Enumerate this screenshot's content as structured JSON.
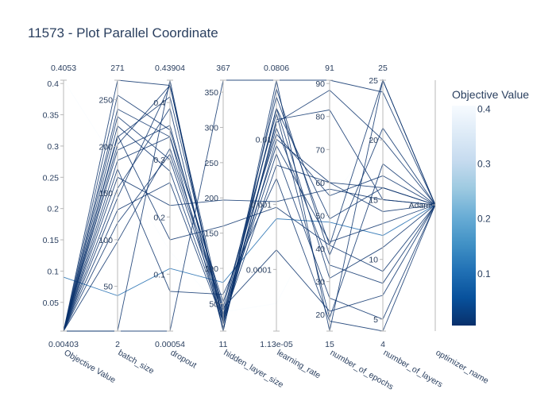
{
  "title": "11573 - Plot Parallel Coordinate",
  "chart_data": {
    "type": "parallel_coordinates",
    "colorscale": "Blues_r",
    "color_axis": {
      "title": "Objective Value",
      "range": [
        0.00403,
        0.4053
      ],
      "ticks": [
        "0.1",
        "0.2",
        "0.3",
        "0.4"
      ],
      "tick_values": [
        0.1,
        0.2,
        0.3,
        0.4
      ]
    },
    "dimensions": [
      {
        "label": "Objective Value",
        "range": [
          0.00403,
          0.4053
        ],
        "range_labels": [
          "0.00403",
          "0.4053"
        ],
        "ticks": [
          {
            "value": 0.05,
            "label": "0.05"
          },
          {
            "value": 0.1,
            "label": "0.1"
          },
          {
            "value": 0.15,
            "label": "0.15"
          },
          {
            "value": 0.2,
            "label": "0.2"
          },
          {
            "value": 0.25,
            "label": "0.25"
          },
          {
            "value": 0.3,
            "label": "0.3"
          },
          {
            "value": 0.35,
            "label": "0.35"
          },
          {
            "value": 0.4,
            "label": "0.4"
          }
        ]
      },
      {
        "label": "batch_size",
        "range": [
          2,
          271
        ],
        "range_labels": [
          "2",
          "271"
        ],
        "ticks": [
          {
            "value": 50,
            "label": "50"
          },
          {
            "value": 100,
            "label": "100"
          },
          {
            "value": 150,
            "label": "150"
          },
          {
            "value": 200,
            "label": "200"
          },
          {
            "value": 250,
            "label": "250"
          }
        ]
      },
      {
        "label": "dropout",
        "range": [
          0.00054,
          0.43904
        ],
        "range_labels": [
          "0.00054",
          "0.43904"
        ],
        "ticks": [
          {
            "value": 0.1,
            "label": "0.1"
          },
          {
            "value": 0.2,
            "label": "0.2"
          },
          {
            "value": 0.3,
            "label": "0.3"
          },
          {
            "value": 0.4,
            "label": "0.4"
          }
        ]
      },
      {
        "label": "hidden_layer_size",
        "range": [
          11,
          367
        ],
        "range_labels": [
          "11",
          "367"
        ],
        "ticks": [
          {
            "value": 50,
            "label": "50"
          },
          {
            "value": 100,
            "label": "100"
          },
          {
            "value": 150,
            "label": "150"
          },
          {
            "value": 200,
            "label": "200"
          },
          {
            "value": 250,
            "label": "250"
          },
          {
            "value": 300,
            "label": "300"
          },
          {
            "value": 350,
            "label": "350"
          }
        ]
      },
      {
        "label": "learning_rate",
        "scale": "log",
        "range": [
          1.13e-05,
          0.0806
        ],
        "range_labels": [
          "1.13e-05",
          "0.0806"
        ],
        "ticks": [
          {
            "value": 0.0001,
            "label": "0.0001"
          },
          {
            "value": 0.001,
            "label": "0.001"
          },
          {
            "value": 0.01,
            "label": "0.01"
          }
        ]
      },
      {
        "label": "number_of_epochs",
        "range": [
          15,
          91
        ],
        "range_labels": [
          "15",
          "91"
        ],
        "ticks": [
          {
            "value": 20,
            "label": "20"
          },
          {
            "value": 30,
            "label": "30"
          },
          {
            "value": 40,
            "label": "40"
          },
          {
            "value": 50,
            "label": "50"
          },
          {
            "value": 60,
            "label": "60"
          },
          {
            "value": 70,
            "label": "70"
          },
          {
            "value": 80,
            "label": "80"
          },
          {
            "value": 90,
            "label": "90"
          }
        ]
      },
      {
        "label": "number_of_layers",
        "range": [
          4,
          25
        ],
        "range_labels": [
          "4",
          "25"
        ],
        "ticks": [
          {
            "value": 5,
            "label": "5"
          },
          {
            "value": 10,
            "label": "10"
          },
          {
            "value": 15,
            "label": "15"
          },
          {
            "value": 20,
            "label": "20"
          },
          {
            "value": 25,
            "label": "25"
          }
        ]
      },
      {
        "label": "optimizer_name",
        "categorical": true,
        "categories": [
          "Adam"
        ],
        "ticks": [
          {
            "value": 0,
            "label": "Adam"
          }
        ]
      }
    ],
    "trials": [
      {
        "values": [
          0.4053,
          180,
          0.14,
          38,
          3e-05,
          54,
          21,
          0
        ]
      },
      {
        "values": [
          0.0902,
          40,
          0.11,
          80,
          0.0006,
          48,
          12,
          0
        ]
      },
      {
        "values": [
          0.00403,
          272,
          0.43,
          34,
          0.045,
          41,
          25,
          0
        ]
      },
      {
        "values": [
          0.00403,
          255,
          0.352,
          45,
          0.025,
          19,
          18,
          0
        ]
      },
      {
        "values": [
          0.00403,
          240,
          0.34,
          52,
          0.012,
          56,
          17,
          0
        ]
      },
      {
        "values": [
          0.00403,
          232,
          0.3,
          33,
          0.006,
          25,
          5,
          0
        ]
      },
      {
        "values": [
          0.00403,
          222,
          0.28,
          27,
          0.004,
          60,
          14,
          0
        ]
      },
      {
        "values": [
          0.00403,
          212,
          0.16,
          160,
          0.0009,
          41,
          9,
          0
        ]
      },
      {
        "values": [
          0.00403,
          202,
          0.43,
          20,
          0.018,
          88,
          20,
          0
        ]
      },
      {
        "values": [
          0.00403,
          196,
          0.36,
          30,
          0.03,
          49,
          16,
          0
        ]
      },
      {
        "values": [
          0.00403,
          185,
          0.34,
          14,
          0.02,
          82,
          15,
          0
        ]
      },
      {
        "values": [
          0.00403,
          176,
          0.07,
          63,
          0.0025,
          18,
          4,
          0
        ]
      },
      {
        "values": [
          0.00403,
          167,
          0.22,
          197,
          0.0011,
          58,
          15,
          0
        ]
      },
      {
        "values": [
          0.00403,
          155,
          0.39,
          11,
          0.06,
          38,
          21,
          0
        ]
      },
      {
        "values": [
          0.00403,
          145,
          0.43,
          22,
          0.01,
          60,
          16,
          0
        ]
      },
      {
        "values": [
          0.00403,
          132,
          0.26,
          24,
          0.03,
          31,
          11,
          0
        ]
      },
      {
        "values": [
          0.00403,
          118,
          0.31,
          40,
          0.008,
          42,
          13,
          0
        ]
      },
      {
        "values": [
          0.00403,
          2,
          0.00054,
          367,
          0.0806,
          91,
          24,
          0
        ]
      },
      {
        "values": [
          0.00403,
          2,
          0.43904,
          11,
          0.0806,
          15,
          25,
          0
        ]
      },
      {
        "values": [
          0.00403,
          98,
          0.32,
          44,
          0.0002,
          21,
          7,
          0
        ]
      },
      {
        "values": [
          0.00403,
          210,
          0.41,
          28,
          0.015,
          35,
          8,
          0
        ]
      }
    ]
  }
}
